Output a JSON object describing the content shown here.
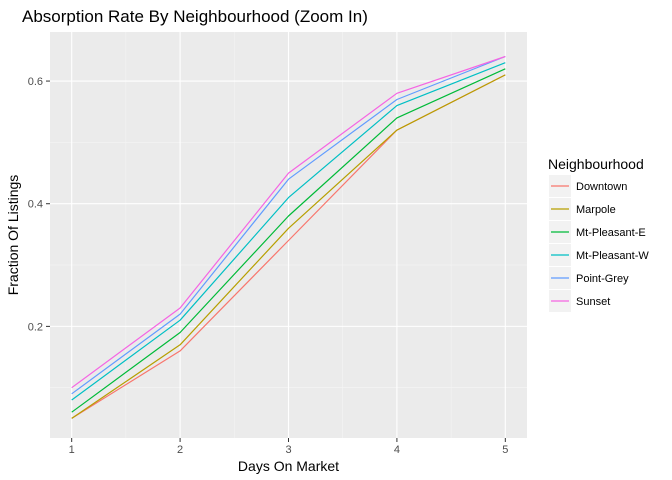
{
  "chart_data": {
    "type": "line",
    "title": "Absorption Rate By Neighbourhood (Zoom In)",
    "xlabel": "Days On Market",
    "ylabel": "Fraction Of Listings",
    "x": [
      1,
      2,
      3,
      4,
      5
    ],
    "xlim": [
      0.8,
      5.2
    ],
    "ylim": [
      0.018,
      0.68
    ],
    "xticks": [
      "1",
      "2",
      "3",
      "4",
      "5"
    ],
    "yticks": [
      0.2,
      0.4,
      0.6
    ],
    "ytick_labels": [
      "0.2",
      "0.4",
      "0.6"
    ],
    "grid": true,
    "legend": {
      "title": "Neighbourhood",
      "position": "right"
    },
    "series": [
      {
        "name": "Downtown",
        "color": "#F8766D",
        "values": [
          0.05,
          0.16,
          0.34,
          0.52,
          0.61
        ]
      },
      {
        "name": "Marpole",
        "color": "#B79F00",
        "values": [
          0.05,
          0.17,
          0.36,
          0.52,
          0.61
        ]
      },
      {
        "name": "Mt-Pleasant-E",
        "color": "#00BA38",
        "values": [
          0.06,
          0.19,
          0.38,
          0.54,
          0.62
        ]
      },
      {
        "name": "Mt-Pleasant-W",
        "color": "#00BFC4",
        "values": [
          0.08,
          0.21,
          0.41,
          0.56,
          0.63
        ]
      },
      {
        "name": "Point-Grey",
        "color": "#619CFF",
        "values": [
          0.09,
          0.22,
          0.44,
          0.57,
          0.64
        ]
      },
      {
        "name": "Sunset",
        "color": "#F564E3",
        "values": [
          0.1,
          0.23,
          0.45,
          0.58,
          0.64
        ]
      }
    ]
  }
}
